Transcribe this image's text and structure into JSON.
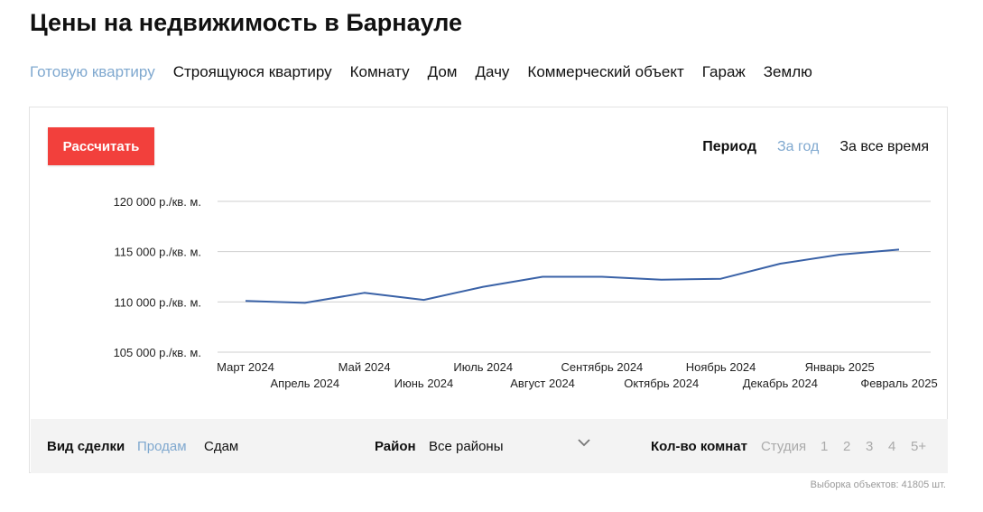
{
  "page": {
    "title": "Цены на недвижимость в Барнауле"
  },
  "property_tabs": [
    {
      "label": "Готовую квартиру",
      "active": true
    },
    {
      "label": "Строящуюся квартиру",
      "active": false
    },
    {
      "label": "Комнату",
      "active": false
    },
    {
      "label": "Дом",
      "active": false
    },
    {
      "label": "Дачу",
      "active": false
    },
    {
      "label": "Коммерческий объект",
      "active": false
    },
    {
      "label": "Гараж",
      "active": false
    },
    {
      "label": "Землю",
      "active": false
    }
  ],
  "card": {
    "calc_button": "Рассчитать",
    "period": {
      "label": "Период",
      "year": "За год",
      "all": "За все время",
      "selected": "year"
    }
  },
  "chart_data": {
    "type": "line",
    "title": "",
    "xlabel": "",
    "ylabel": "",
    "categories": [
      "Март 2024",
      "Апрель 2024",
      "Май 2024",
      "Июнь 2024",
      "Июль 2024",
      "Август 2024",
      "Сентябрь 2024",
      "Октябрь 2024",
      "Ноябрь 2024",
      "Декабрь 2024",
      "Январь 2025",
      "Февраль 2025"
    ],
    "y_tick_labels": [
      "120 000 р./кв. м.",
      "115 000 р./кв. м.",
      "110 000 р./кв. м.",
      "105 000 р./кв. м."
    ],
    "y_tick_values": [
      120000,
      115000,
      110000,
      105000
    ],
    "ylim": [
      105000,
      120000
    ],
    "grid": true,
    "line_color": "#3a62a7",
    "series": [
      {
        "values": [
          110100,
          109900,
          110900,
          110200,
          111500,
          112500,
          112500,
          112200,
          112300,
          113800,
          114700,
          115200
        ]
      }
    ]
  },
  "filters": {
    "deal_type": {
      "label": "Вид сделки",
      "options": [
        {
          "label": "Продам",
          "active": true
        },
        {
          "label": "Сдам",
          "active": false
        }
      ]
    },
    "district": {
      "label": "Район",
      "value": "Все районы"
    },
    "rooms": {
      "label": "Кол-во комнат",
      "options": [
        "Студия",
        "1",
        "2",
        "3",
        "4",
        "5+"
      ]
    }
  },
  "footnote": "Выборка объектов: 41805 шт."
}
